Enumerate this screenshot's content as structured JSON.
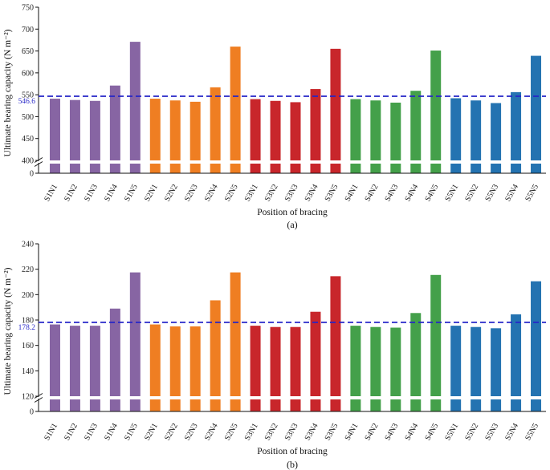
{
  "colors": {
    "S1": "#8765a3",
    "S2": "#ef7e22",
    "S3": "#c8262b",
    "S4": "#44a04a",
    "S5": "#2473b1",
    "reference_line": "#2424c8"
  },
  "chart_data": [
    {
      "type": "bar",
      "panel_label": "(a)",
      "xlabel": "Position of bracing",
      "ylabel": "Ultimate bearing capacity (N m⁻²)",
      "categories": [
        "S1N1",
        "S1N2",
        "S1N3",
        "S1N4",
        "S1N5",
        "S2N1",
        "S2N2",
        "S2N3",
        "S2N4",
        "S2N5",
        "S3N1",
        "S3N2",
        "S3N3",
        "S3N4",
        "S3N5",
        "S4N1",
        "S4N2",
        "S4N3",
        "S4N4",
        "S4N5",
        "S5N1",
        "S5N2",
        "S5N3",
        "S5N4",
        "S5N5"
      ],
      "values": [
        541,
        538,
        536,
        571,
        671,
        541,
        537,
        534,
        567,
        660,
        540,
        536,
        533,
        563,
        655,
        540,
        537,
        532,
        559,
        651,
        542,
        537,
        531,
        556,
        639
      ],
      "groups": [
        "S1",
        "S1",
        "S1",
        "S1",
        "S1",
        "S2",
        "S2",
        "S2",
        "S2",
        "S2",
        "S3",
        "S3",
        "S3",
        "S3",
        "S3",
        "S4",
        "S4",
        "S4",
        "S4",
        "S4",
        "S5",
        "S5",
        "S5",
        "S5",
        "S5"
      ],
      "yticks": [
        400,
        450,
        500,
        550,
        600,
        650,
        700,
        750
      ],
      "ylim": [
        400,
        750
      ],
      "axis_break": true,
      "axis_zero_label": "0",
      "reference_line": {
        "value": 546.6,
        "label": "546.6"
      },
      "grid": false,
      "legend": "none"
    },
    {
      "type": "bar",
      "panel_label": "(b)",
      "xlabel": "Position of bracing",
      "ylabel": "Ultimate bearing capacity (N m⁻²)",
      "categories": [
        "S1N1",
        "S1N2",
        "S1N3",
        "S1N4",
        "S1N5",
        "S2N1",
        "S2N2",
        "S2N3",
        "S2N4",
        "S2N5",
        "S3N1",
        "S3N2",
        "S3N3",
        "S3N4",
        "S3N5",
        "S4N1",
        "S4N2",
        "S4N3",
        "S4N4",
        "S4N5",
        "S5N1",
        "S5N2",
        "S5N3",
        "S5N4",
        "S5N5"
      ],
      "values": [
        176.5,
        175.5,
        175.5,
        189,
        217.5,
        176.5,
        175,
        175,
        195.5,
        217.5,
        175.5,
        174.5,
        174.5,
        186.5,
        214.5,
        175.5,
        174.5,
        174,
        185.5,
        215.5,
        175.5,
        174.5,
        173.5,
        184.5,
        210.5
      ],
      "groups": [
        "S1",
        "S1",
        "S1",
        "S1",
        "S1",
        "S2",
        "S2",
        "S2",
        "S2",
        "S2",
        "S3",
        "S3",
        "S3",
        "S3",
        "S3",
        "S4",
        "S4",
        "S4",
        "S4",
        "S4",
        "S5",
        "S5",
        "S5",
        "S5",
        "S5"
      ],
      "yticks": [
        120,
        140,
        160,
        180,
        200,
        220,
        240
      ],
      "ylim": [
        120,
        240
      ],
      "axis_break": true,
      "axis_zero_label": "0",
      "reference_line": {
        "value": 178.2,
        "label": "178.2"
      },
      "grid": false,
      "legend": "none"
    }
  ]
}
